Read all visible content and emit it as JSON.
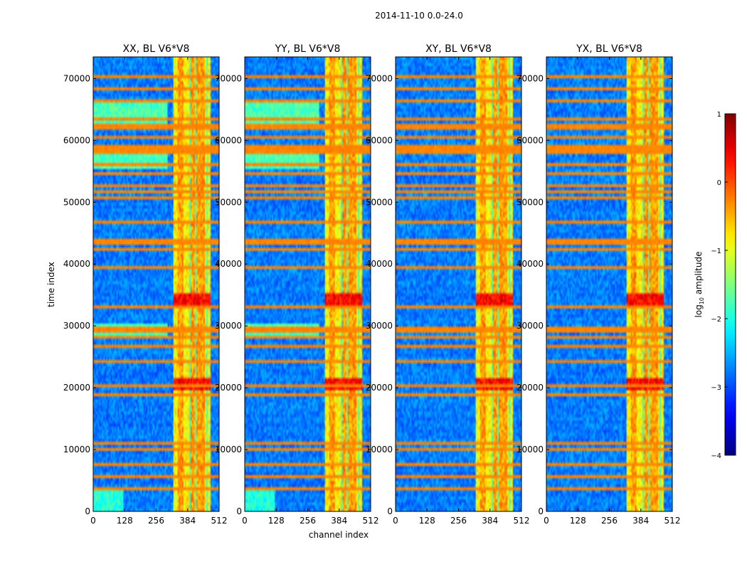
{
  "figure_title": "2014-11-10 0.0-24.0",
  "chart_data": {
    "type": "heatmap",
    "suptitle": "2014-11-10 0.0-24.0",
    "xlabel": "channel index",
    "ylabel": "time index",
    "xlim": [
      0,
      512
    ],
    "ylim": [
      0,
      73500
    ],
    "x_ticks": [
      0,
      128,
      256,
      384,
      512
    ],
    "y_ticks": [
      0,
      10000,
      20000,
      30000,
      40000,
      50000,
      60000,
      70000
    ],
    "panels": [
      {
        "title": "XX, BL V6*V8",
        "cross_pol": false
      },
      {
        "title": "YY, BL V6*V8",
        "cross_pol": false
      },
      {
        "title": "XY, BL V6*V8",
        "cross_pol": true
      },
      {
        "title": "YX, BL V6*V8",
        "cross_pol": true
      }
    ],
    "rfi_channel_band": [
      325,
      478
    ],
    "band_peak_channels": [
      355,
      402,
      425,
      445
    ],
    "flagged_time_rows": [
      3800,
      5600,
      7400,
      10100,
      11200,
      18900,
      20300,
      24300,
      26600,
      28400,
      29000,
      29800,
      33200,
      39600,
      42300,
      43200,
      44000,
      47000,
      50900,
      51800,
      52500,
      54500,
      56000,
      58300,
      58700,
      59200,
      60300,
      61800,
      62500,
      63400,
      66200,
      68300,
      70100
    ],
    "bright_time_bursts": [
      [
        33200,
        35500
      ],
      [
        19800,
        21700
      ]
    ],
    "colorbar": {
      "label": "log",
      "label_sub": "10",
      "label_rest": " amplitude",
      "min": -4,
      "max": 1,
      "ticks": [
        "1",
        "0",
        "−1",
        "−2",
        "−3",
        "−4"
      ],
      "colormap": "jet"
    }
  }
}
